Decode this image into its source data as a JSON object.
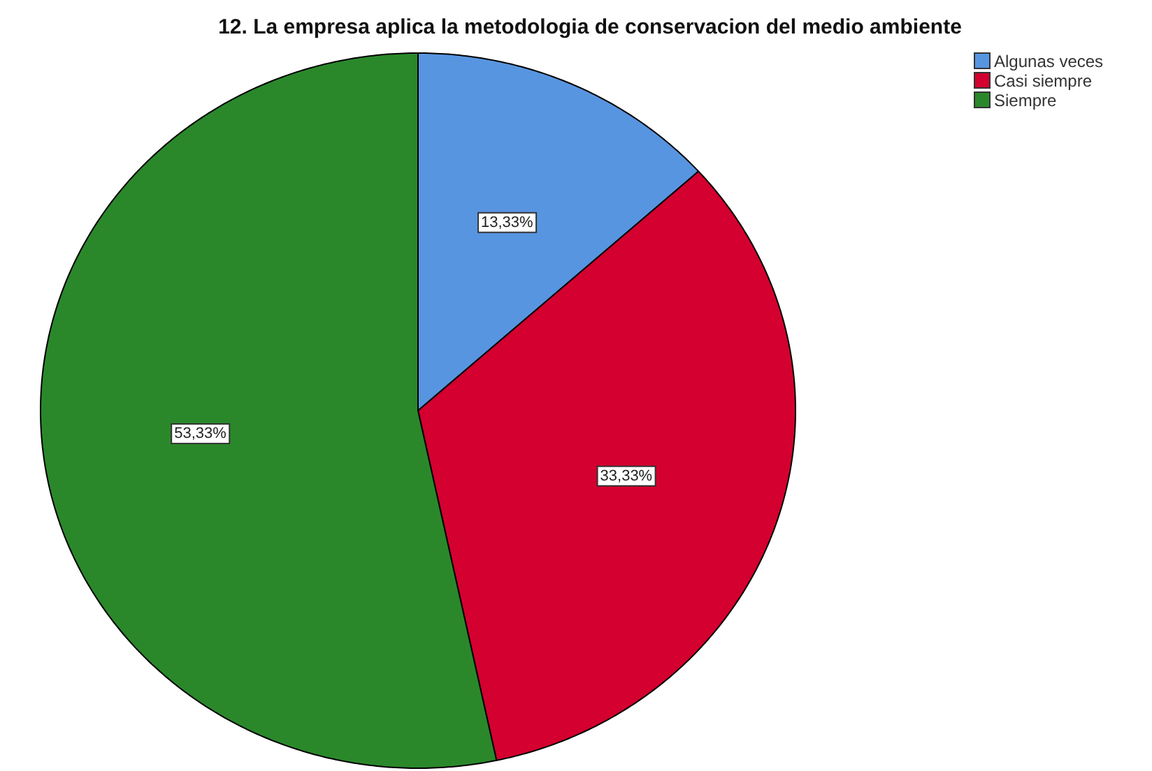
{
  "chart_data": {
    "type": "pie",
    "title": "12. La empresa aplica la metodologia de conservacion del medio ambiente",
    "categories": [
      "Algunas veces",
      "Casi siempre",
      "Siempre"
    ],
    "values": [
      13.33,
      33.33,
      53.33
    ],
    "value_labels": [
      "13,33%",
      "33,33%",
      "53,33%"
    ],
    "colors": [
      "#5895e0",
      "#d4002f",
      "#2a882b"
    ],
    "legend": "top right"
  }
}
